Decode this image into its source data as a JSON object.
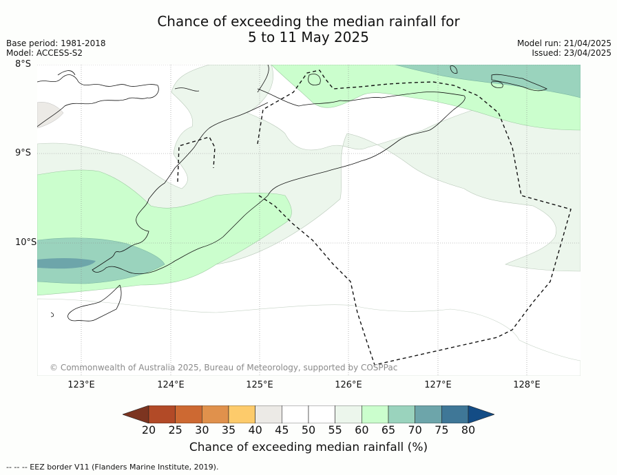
{
  "title_line1": "Chance of exceeding the median rainfall for",
  "title_line2": "5 to 11 May 2025",
  "base_period": "Base period: 1981-2018",
  "model": "Model: ACCESS-S2",
  "model_run": "Model run: 21/04/2025",
  "issued": "Issued: 23/04/2025",
  "lat_labels": [
    "8°S",
    "9°S",
    "10°S"
  ],
  "lon_labels": [
    "123°E",
    "124°E",
    "125°E",
    "126°E",
    "127°E",
    "128°E"
  ],
  "copyright": "© Commonwealth of Australia 2025, Bureau of Meteorology, supported by COSPPac",
  "colorbar": {
    "ticks": [
      "20",
      "25",
      "30",
      "35",
      "40",
      "45",
      "50",
      "55",
      "60",
      "65",
      "70",
      "75",
      "80"
    ],
    "colors": [
      "#7c3420",
      "#b24a27",
      "#cd6932",
      "#e0914c",
      "#fdcb6b",
      "#eceae6",
      "#ffffff",
      "#ffffff",
      "#ecf6ec",
      "#cbfecd",
      "#9ad3bd",
      "#6da5aa",
      "#3f7797",
      "#134c85"
    ],
    "title": "Chance of exceeding median rainfall (%)"
  },
  "footnote": "--  --  -- EEZ border V11 (Flanders Marine Institute, 2019)."
}
